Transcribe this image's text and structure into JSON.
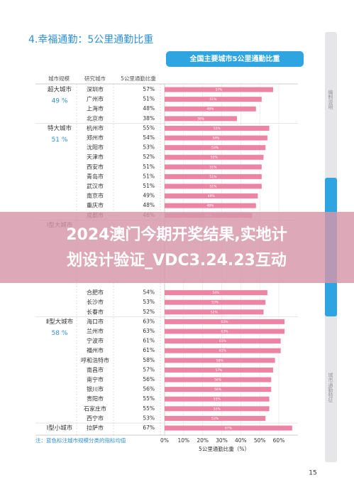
{
  "title": "4.幸福通勤：5公里通勤比重",
  "chart_title": "全国主要城市5公里通勤比重",
  "headers": [
    "城市规模",
    "研究城市",
    "5公里通勤比重"
  ],
  "groups": [
    {
      "name": "超大城市",
      "avg": "49 %",
      "rows": [
        {
          "city": "深圳市",
          "value": 57,
          "label": "57%"
        },
        {
          "city": "广州市",
          "value": 51,
          "label": "51%"
        },
        {
          "city": "上海市",
          "value": 48,
          "label": "48%"
        },
        {
          "city": "北京市",
          "value": 38,
          "label": "38%"
        }
      ]
    },
    {
      "name": "特大城市",
      "avg": "51 %",
      "rows": [
        {
          "city": "杭州市",
          "value": 55,
          "label": "55%"
        },
        {
          "city": "郑州市",
          "value": 54,
          "label": "54%"
        },
        {
          "city": "沈阳市",
          "value": 53,
          "label": "53%"
        },
        {
          "city": "天津市",
          "value": 52,
          "label": "52%"
        },
        {
          "city": "西安市",
          "value": 51,
          "label": "51%"
        },
        {
          "city": "青岛市",
          "value": 51,
          "label": "51%"
        },
        {
          "city": "武汉市",
          "value": 51,
          "label": "51%"
        },
        {
          "city": "南京市",
          "value": 49,
          "label": "49%"
        },
        {
          "city": "重庆市",
          "value": 48,
          "label": "48%"
        },
        {
          "city": "成都市",
          "value": 46,
          "label": "46%"
        }
      ]
    },
    {
      "name": "Ⅰ型大城市",
      "rows": [
        {
          "city": "合肥市",
          "value": 54,
          "label": "54%"
        },
        {
          "city": "长沙市",
          "value": 53,
          "label": "53%"
        },
        {
          "city": "长春市",
          "value": 52,
          "label": "52%"
        }
      ]
    },
    {
      "name": "Ⅱ型大城市",
      "avg": "58 %",
      "rows": [
        {
          "city": "海口市",
          "value": 63,
          "label": "63%"
        },
        {
          "city": "兰州市",
          "value": 63,
          "label": "63%"
        },
        {
          "city": "宁波市",
          "value": 61,
          "label": "61%"
        },
        {
          "city": "福州市",
          "value": 61,
          "label": "61%"
        },
        {
          "city": "呼和浩特市",
          "value": 58,
          "label": "58%"
        },
        {
          "city": "南昌市",
          "value": 57,
          "label": "57%"
        },
        {
          "city": "南宁市",
          "value": 56,
          "label": "56%"
        },
        {
          "city": "银川市",
          "value": 56,
          "label": "56%"
        },
        {
          "city": "贵阳市",
          "value": 55,
          "label": "55%"
        },
        {
          "city": "石家庄市",
          "value": 55,
          "label": "55%"
        },
        {
          "city": "西宁市",
          "value": 53,
          "label": "53%"
        }
      ]
    },
    {
      "name": "Ⅰ型小城市",
      "rows": [
        {
          "city": "拉萨市",
          "value": 67,
          "label": "67%"
        }
      ]
    }
  ],
  "xlim": [
    0,
    60
  ],
  "xticks": [
    {
      "value": 0,
      "label": "0%"
    },
    {
      "value": 10,
      "label": "10%"
    },
    {
      "value": 20,
      "label": "20%"
    },
    {
      "value": 30,
      "label": "30%"
    },
    {
      "value": 40,
      "label": "40%"
    },
    {
      "value": 50,
      "label": "50%"
    },
    {
      "value": 60,
      "label": "60%"
    }
  ],
  "axis_label": "5公里通勤比重（%）",
  "note": "注：蓝色标注城市规模分类的指标均值",
  "page_number": "15",
  "side_tabs": [
    "编制说明",
    "城市通勤特征"
  ],
  "banner": [
    "2024澳门今期开奖结果,实地计",
    "划设计验证_VDC3.24.23互动"
  ]
}
